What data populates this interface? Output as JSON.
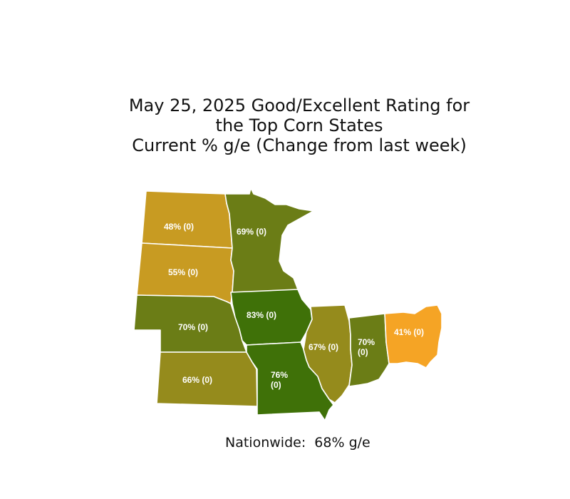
{
  "title": {
    "line1": "May 25, 2025 Good/Excellent Rating for",
    "line2": "the Top Corn States",
    "line3": "Current % g/e (Change from last week)"
  },
  "colors": {
    "high": "#3f7108",
    "mid_high": "#6b7d16",
    "mid": "#958b1c",
    "low": "#c89b22",
    "lowest": "#f5a425",
    "border": "#ffffff",
    "label": "#ffffff"
  },
  "states": [
    {
      "id": "north-dakota",
      "rating": 48,
      "change": 0,
      "color": "#c89b22",
      "label": "48% (0)"
    },
    {
      "id": "south-dakota",
      "rating": 55,
      "change": 0,
      "color": "#c89b22",
      "label": "55% (0)"
    },
    {
      "id": "nebraska",
      "rating": 70,
      "change": 0,
      "color": "#6b7d16",
      "label": "70% (0)"
    },
    {
      "id": "kansas",
      "rating": 66,
      "change": 0,
      "color": "#958b1c",
      "label": "66% (0)"
    },
    {
      "id": "minnesota",
      "rating": 69,
      "change": 0,
      "color": "#6b7d16",
      "label": "69% (0)"
    },
    {
      "id": "iowa",
      "rating": 83,
      "change": 0,
      "color": "#3f7108",
      "label": "83% (0)"
    },
    {
      "id": "missouri",
      "rating": 76,
      "change": 0,
      "color": "#3f7108",
      "label_line1": "76%",
      "label_line2": "(0)"
    },
    {
      "id": "illinois",
      "rating": 67,
      "change": 0,
      "color": "#958b1c",
      "label": "67% (0)"
    },
    {
      "id": "indiana",
      "rating": 70,
      "change": 0,
      "color": "#6b7d16",
      "label_line1": "70%",
      "label_line2": "(0)"
    },
    {
      "id": "ohio",
      "rating": 41,
      "change": 0,
      "color": "#f5a425",
      "label": "41% (0)"
    }
  ],
  "nationwide": "Nationwide:  68% g/e"
}
